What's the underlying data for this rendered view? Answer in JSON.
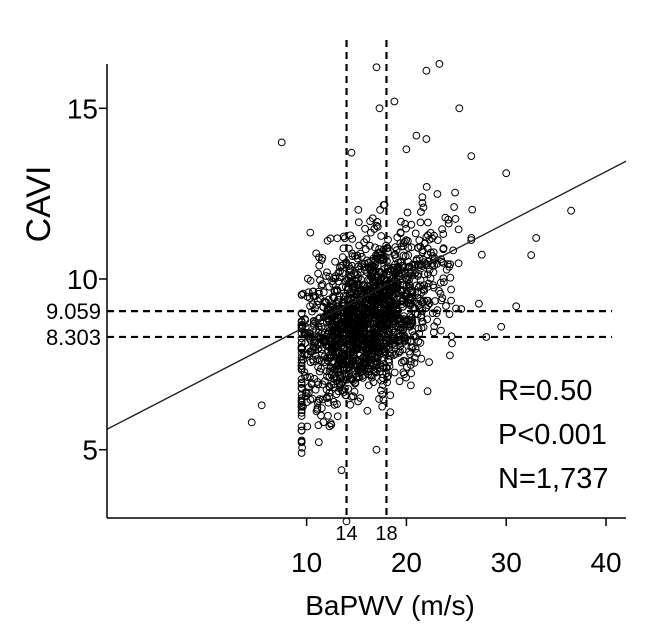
{
  "chart_data": {
    "type": "scatter",
    "title": "",
    "xlabel": "BaPWV (m/s)",
    "ylabel": "CAVI",
    "xlim": [
      -10,
      42
    ],
    "ylim": [
      3,
      17
    ],
    "x_ticks": [
      10,
      20,
      30,
      40
    ],
    "x_tick_labels": [
      "10",
      "20",
      "30",
      "40"
    ],
    "y_ticks": [
      5,
      10,
      15
    ],
    "y_tick_labels": [
      "5",
      "10",
      "15"
    ],
    "reference_lines": {
      "vertical": [
        {
          "x": 14,
          "label": "14"
        },
        {
          "x": 18,
          "label": "18"
        }
      ],
      "horizontal": [
        {
          "y": 9.059,
          "label": "9.059"
        },
        {
          "y": 8.303,
          "label": "8.303"
        }
      ]
    },
    "regression_line": {
      "x1": -10,
      "y1": 5.6,
      "x2": 42,
      "y2": 13.45
    },
    "stats": [
      "R=0.50",
      "P<0.001",
      "N=1,737"
    ],
    "n_points_drawn": 1737,
    "cluster": {
      "center_x": 16,
      "center_y": 8.8,
      "sd_x": 3.6,
      "sd_y": 1.25,
      "correlation": 0.5
    },
    "notable_points": [
      [
        7.5,
        14.0
      ],
      [
        17.0,
        16.2
      ],
      [
        23.3,
        16.3
      ],
      [
        22.0,
        16.1
      ],
      [
        17.3,
        15.0
      ],
      [
        18.8,
        15.2
      ],
      [
        25.3,
        15.0
      ],
      [
        20.0,
        13.8
      ],
      [
        21.0,
        14.2
      ],
      [
        22.0,
        14.1
      ],
      [
        26.5,
        13.6
      ],
      [
        30.0,
        13.1
      ],
      [
        36.5,
        12.0
      ],
      [
        33.0,
        11.2
      ],
      [
        32.5,
        10.7
      ],
      [
        4.5,
        5.8
      ],
      [
        5.5,
        6.3
      ],
      [
        14.0,
        2.9
      ],
      [
        13.5,
        4.4
      ],
      [
        17.0,
        5.0
      ],
      [
        14.5,
        13.7
      ],
      [
        29.5,
        8.6
      ],
      [
        28.0,
        8.3
      ],
      [
        31.0,
        9.2
      ]
    ],
    "grid": false,
    "legend": "none"
  }
}
